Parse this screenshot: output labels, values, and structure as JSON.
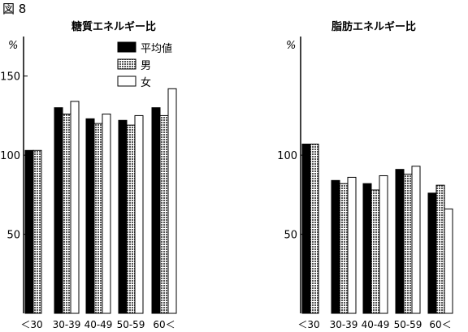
{
  "figure_label": "図 8",
  "legend": [
    {
      "label": "平均値",
      "color": "#000000",
      "pattern": "solid"
    },
    {
      "label": "男",
      "color": "#8a8a8a",
      "pattern": "dotted"
    },
    {
      "label": "女",
      "color": "#ffffff",
      "pattern": "outline"
    }
  ],
  "chart_data": [
    {
      "type": "bar",
      "title": "糖質エネルギー比",
      "ylabel": "%",
      "ylim": [
        0,
        175
      ],
      "yticks": [
        50,
        100,
        150
      ],
      "grid": false,
      "legend_position": "top-right",
      "categories": [
        "＜30",
        "30-39",
        "40-49",
        "50-59",
        "60＜"
      ],
      "series": [
        {
          "name": "平均値",
          "values": [
            103,
            130,
            123,
            122,
            130
          ]
        },
        {
          "name": "男",
          "values": [
            103,
            126,
            120,
            119,
            125
          ]
        },
        {
          "name": "女",
          "values": [
            null,
            134,
            126,
            125,
            142
          ]
        }
      ]
    },
    {
      "type": "bar",
      "title": "脂肪エネルギー比",
      "ylabel": "%",
      "ylim": [
        0,
        175
      ],
      "yticks": [
        50,
        100
      ],
      "grid": false,
      "categories": [
        "＜30",
        "30-39",
        "40-49",
        "50-59",
        "60＜"
      ],
      "series": [
        {
          "name": "平均値",
          "values": [
            107,
            84,
            82,
            91,
            76
          ]
        },
        {
          "name": "男",
          "values": [
            107,
            82,
            78,
            88,
            81
          ]
        },
        {
          "name": "女",
          "values": [
            null,
            86,
            87,
            93,
            66
          ]
        }
      ]
    }
  ]
}
